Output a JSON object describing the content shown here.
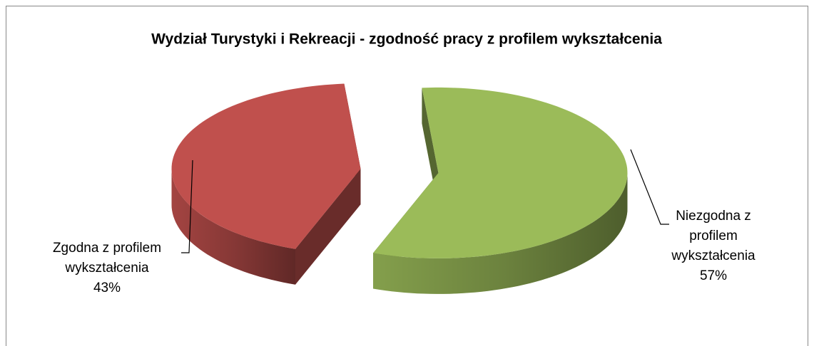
{
  "chart_data": {
    "type": "pie",
    "title": "Wydział Turystyki i Rekreacji - zgodność pracy z profilem wykształcenia",
    "categories": [
      "Zgodna z profilem wykształcenia",
      "Niezgodna z profilem wykształcenia"
    ],
    "values": [
      43,
      57
    ],
    "value_labels": [
      "43%",
      "57%"
    ],
    "colors": [
      "#c0504d",
      "#9bbb59"
    ]
  }
}
